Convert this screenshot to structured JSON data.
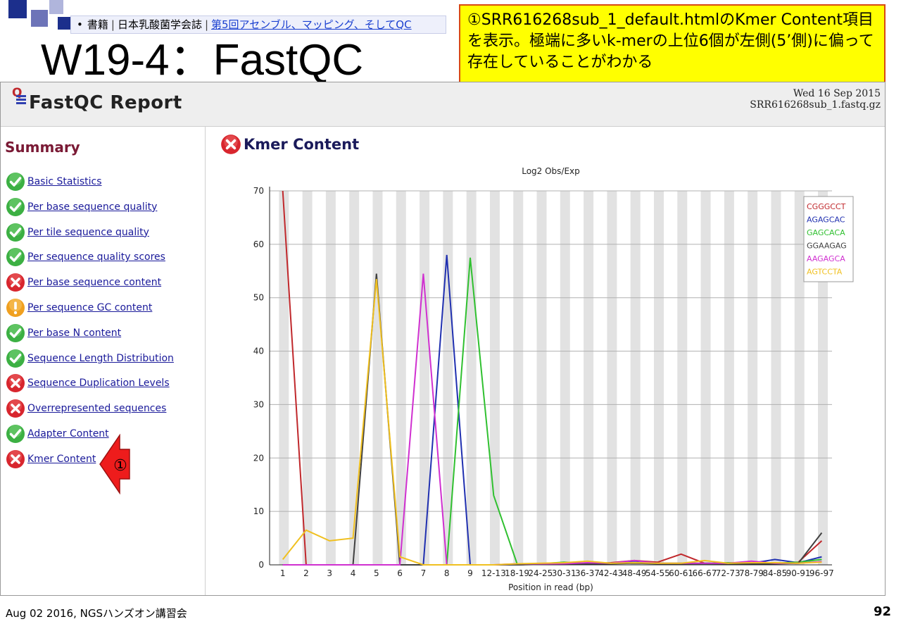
{
  "slide": {
    "breadcrumb": {
      "bullet": "•",
      "item1": "書籍",
      "item2": "日本乳酸菌学会誌",
      "link": "第5回アセンブル、マッピング、そしてQC"
    },
    "title": "W19-4：FastQC",
    "callout": "①SRR616268sub_1_default.htmlのKmer Content項目を表示。極端に多いk-merの上位6個が左側(5’側)に偏って存在していることがわかる",
    "footer": "Aug 02 2016, NGSハンズオン講習会",
    "page_number": "92",
    "arrow_label": "①"
  },
  "report": {
    "title": "FastQC Report",
    "date": "Wed 16 Sep 2015",
    "filename": "SRR616268sub_1.fastq.gz",
    "summary_title": "Summary",
    "modules": [
      {
        "label": "Basic Statistics",
        "status": "pass"
      },
      {
        "label": "Per base sequence quality",
        "status": "pass"
      },
      {
        "label": "Per tile sequence quality",
        "status": "pass"
      },
      {
        "label": "Per sequence quality scores",
        "status": "pass"
      },
      {
        "label": "Per base sequence content",
        "status": "fail"
      },
      {
        "label": "Per sequence GC content",
        "status": "warn"
      },
      {
        "label": "Per base N content",
        "status": "pass"
      },
      {
        "label": "Sequence Length Distribution",
        "status": "pass"
      },
      {
        "label": "Sequence Duplication Levels",
        "status": "fail"
      },
      {
        "label": "Overrepresented sequences",
        "status": "fail"
      },
      {
        "label": "Adapter Content",
        "status": "pass"
      },
      {
        "label": "Kmer Content",
        "status": "fail"
      }
    ],
    "section_title": "Kmer Content"
  },
  "colors": {
    "pass": "#3cb043",
    "fail": "#d8262e",
    "warn": "#f0a020"
  },
  "chart_data": {
    "type": "line",
    "title": "Log2 Obs/Exp",
    "xlabel": "Position in read (bp)",
    "ylabel": "",
    "ylim": [
      0,
      70
    ],
    "yticks": [
      0,
      10,
      20,
      30,
      40,
      50,
      60,
      70
    ],
    "grid": true,
    "legend_position": "top-right",
    "x": [
      "1",
      "2",
      "3",
      "4",
      "5",
      "6",
      "7",
      "8",
      "9",
      "12-13",
      "18-19",
      "24-25",
      "30-31",
      "36-37",
      "42-43",
      "48-49",
      "54-55",
      "60-61",
      "66-67",
      "72-73",
      "78-79",
      "84-85",
      "90-91",
      "96-97"
    ],
    "series": [
      {
        "name": "CGGGCCT",
        "color": "#c0282c",
        "values": [
          70,
          0,
          0,
          0,
          0,
          0,
          0,
          0,
          0,
          0,
          0,
          0.2,
          0.3,
          0.2,
          0.4,
          0.8,
          0.5,
          2,
          0.3,
          0.2,
          0.4,
          0.3,
          0.5,
          4.5
        ]
      },
      {
        "name": "AGAGCAC",
        "color": "#2030b0",
        "values": [
          0,
          0,
          0,
          0,
          0,
          0,
          0,
          58,
          0,
          0,
          0,
          0.2,
          0.3,
          0.2,
          0.3,
          0.5,
          0.3,
          0.2,
          0.2,
          0.3,
          0.3,
          1,
          0.4,
          1.5
        ]
      },
      {
        "name": "GAGCACA",
        "color": "#30c030",
        "values": [
          0,
          0,
          0,
          0,
          0,
          0,
          0,
          0,
          57.5,
          13,
          0.2,
          0.2,
          0.5,
          0.3,
          0.3,
          0.4,
          0.3,
          0.3,
          0.3,
          0.4,
          0.3,
          0.3,
          0.5,
          1
        ]
      },
      {
        "name": "GGAAGAG",
        "color": "#404040",
        "values": [
          0,
          0,
          0,
          0,
          54.5,
          0,
          0,
          0,
          0,
          0,
          0,
          0.1,
          0.2,
          0.2,
          0.2,
          0.3,
          0.2,
          0.2,
          0.1,
          0.2,
          0.2,
          0.2,
          0.3,
          6
        ]
      },
      {
        "name": "AAGAGCA",
        "color": "#d030d0",
        "values": [
          0,
          0,
          0,
          0,
          0,
          0,
          54.5,
          0,
          0,
          0,
          0.2,
          0.2,
          0.2,
          0.4,
          0.3,
          0.8,
          0.3,
          0.3,
          0.3,
          0.3,
          0.7,
          0.3,
          0.3,
          0.6
        ]
      },
      {
        "name": "AGTCCTA",
        "color": "#f0c020",
        "values": [
          1,
          6.5,
          4.5,
          5,
          53.5,
          1.5,
          0,
          0,
          0,
          0,
          0.2,
          0.3,
          0.4,
          0.7,
          0.3,
          0.4,
          0.3,
          0.3,
          0.8,
          0.3,
          0.4,
          0.4,
          0.3,
          0.5
        ]
      }
    ]
  }
}
